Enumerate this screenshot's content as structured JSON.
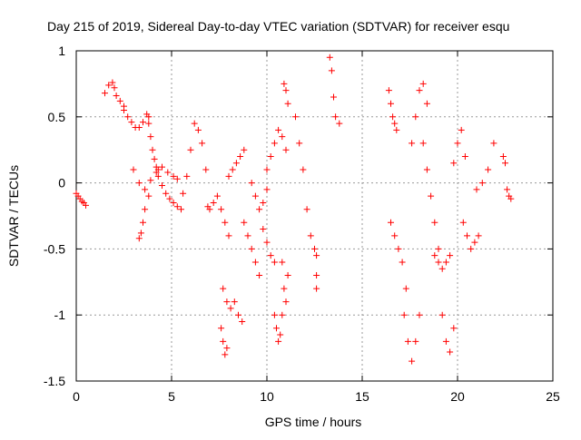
{
  "chart_data": {
    "type": "scatter",
    "title": "Day 215 of 2019, Sidereal Day-to-day VTEC variation (SDTVAR) for receiver esqu",
    "xlabel": "GPS time / hours",
    "ylabel": "SDTVAR / TECUs",
    "xlim": [
      0,
      25
    ],
    "ylim": [
      -1.5,
      1
    ],
    "x_ticks": [
      0,
      5,
      10,
      15,
      20,
      25
    ],
    "x_tick_labels": [
      "0",
      "5",
      "10",
      "15",
      "20",
      "25"
    ],
    "y_ticks": [
      1,
      0.5,
      0,
      -0.5,
      -1,
      -1.5
    ],
    "y_tick_labels": [
      "1",
      "0.5",
      "0",
      "-0.5",
      "-1",
      "-1.5"
    ],
    "grid": true,
    "marker": "plus",
    "series": [
      {
        "name": "SDTVAR",
        "color": "#ff0000",
        "tracks": [
          {
            "x": [
              0.0,
              0.1,
              0.2,
              0.3,
              0.4,
              0.5
            ],
            "y": [
              -0.08,
              -0.1,
              -0.12,
              -0.14,
              -0.15,
              -0.17
            ]
          },
          {
            "x": [
              1.5,
              1.7,
              1.9,
              2.0,
              2.1,
              2.3,
              2.5
            ],
            "y": [
              0.68,
              0.74,
              0.76,
              0.72,
              0.66,
              0.62,
              0.58
            ]
          },
          {
            "x": [
              2.5,
              2.7,
              2.9,
              3.1,
              3.3,
              3.5,
              3.7,
              3.8
            ],
            "y": [
              0.55,
              0.5,
              0.46,
              0.42,
              0.42,
              0.46,
              0.52,
              0.5
            ]
          },
          {
            "x": [
              3.8,
              3.9,
              4.0,
              4.1,
              4.2,
              4.3
            ],
            "y": [
              0.45,
              0.35,
              0.25,
              0.18,
              0.12,
              0.1
            ]
          },
          {
            "x": [
              3.0,
              3.3,
              3.6,
              3.9,
              4.2,
              4.5,
              4.8,
              5.1,
              5.3
            ],
            "y": [
              0.1,
              0.0,
              -0.05,
              0.02,
              0.08,
              0.12,
              0.08,
              0.05,
              0.03
            ]
          },
          {
            "x": [
              3.3,
              3.4,
              3.5,
              3.6,
              3.8
            ],
            "y": [
              -0.42,
              -0.38,
              -0.3,
              -0.2,
              -0.1
            ]
          },
          {
            "x": [
              4.3,
              4.5,
              4.7,
              4.9,
              5.1,
              5.3,
              5.5
            ],
            "y": [
              0.05,
              -0.02,
              -0.08,
              -0.12,
              -0.15,
              -0.18,
              -0.2
            ]
          },
          {
            "x": [
              5.6,
              5.8,
              6.0,
              6.2,
              6.4,
              6.6,
              6.8
            ],
            "y": [
              -0.08,
              0.05,
              0.25,
              0.45,
              0.4,
              0.3,
              0.1
            ]
          },
          {
            "x": [
              6.9,
              7.0,
              7.2,
              7.4,
              7.6,
              7.8,
              8.0
            ],
            "y": [
              -0.18,
              -0.2,
              -0.15,
              -0.1,
              -0.2,
              -0.3,
              -0.4
            ]
          },
          {
            "x": [
              7.6,
              7.7,
              7.8,
              7.9
            ],
            "y": [
              -1.1,
              -1.2,
              -1.3,
              -1.25
            ]
          },
          {
            "x": [
              7.7,
              7.9,
              8.1,
              8.3,
              8.5,
              8.7
            ],
            "y": [
              -0.8,
              -0.9,
              -0.95,
              -0.9,
              -1.0,
              -1.05
            ]
          },
          {
            "x": [
              8.0,
              8.2,
              8.4,
              8.6,
              8.8
            ],
            "y": [
              0.05,
              0.1,
              0.15,
              0.2,
              0.25
            ]
          },
          {
            "x": [
              8.8,
              9.0,
              9.2,
              9.4,
              9.6
            ],
            "y": [
              -0.3,
              -0.4,
              -0.5,
              -0.6,
              -0.7
            ]
          },
          {
            "x": [
              9.2,
              9.4,
              9.6,
              9.8,
              10.0
            ],
            "y": [
              0.0,
              -0.1,
              -0.2,
              -0.15,
              -0.05
            ]
          },
          {
            "x": [
              9.8,
              10.0,
              10.2,
              10.4
            ],
            "y": [
              -0.35,
              -0.45,
              -0.55,
              -0.6
            ]
          },
          {
            "x": [
              10.0,
              10.2,
              10.4,
              10.6,
              10.8,
              11.0
            ],
            "y": [
              0.1,
              0.2,
              0.3,
              0.4,
              0.35,
              0.25
            ]
          },
          {
            "x": [
              10.4,
              10.5,
              10.6,
              10.7,
              10.8
            ],
            "y": [
              -1.0,
              -1.1,
              -1.2,
              -1.15,
              -1.0
            ]
          },
          {
            "x": [
              10.8,
              10.9,
              11.0,
              11.1
            ],
            "y": [
              -0.6,
              -0.8,
              -0.9,
              -0.7
            ]
          },
          {
            "x": [
              10.9,
              11.0,
              11.1
            ],
            "y": [
              0.75,
              0.7,
              0.6
            ]
          },
          {
            "x": [
              11.5,
              11.7,
              11.9,
              12.1,
              12.3
            ],
            "y": [
              0.5,
              0.3,
              0.1,
              -0.2,
              -0.4
            ]
          },
          {
            "x": [
              12.5,
              12.6
            ],
            "y": [
              -0.5,
              -0.55
            ]
          },
          {
            "x": [
              12.6
            ],
            "y": [
              -0.7
            ]
          },
          {
            "x": [
              12.6
            ],
            "y": [
              -0.8
            ]
          },
          {
            "x": [
              13.3,
              13.4,
              13.5,
              13.6,
              13.8
            ],
            "y": [
              0.95,
              0.85,
              0.65,
              0.5,
              0.45
            ]
          },
          {
            "x": [
              16.4,
              16.5,
              16.6,
              16.7,
              16.8
            ],
            "y": [
              0.7,
              0.6,
              0.5,
              0.45,
              0.4
            ]
          },
          {
            "x": [
              16.5,
              16.7,
              16.9,
              17.1,
              17.3
            ],
            "y": [
              -0.3,
              -0.4,
              -0.5,
              -0.6,
              -0.8
            ]
          },
          {
            "x": [
              17.2,
              17.4,
              17.6,
              17.8,
              18.0
            ],
            "y": [
              -1.0,
              -1.2,
              -1.35,
              -1.2,
              -1.0
            ]
          },
          {
            "x": [
              17.6,
              17.8,
              18.0,
              18.2,
              18.4
            ],
            "y": [
              0.3,
              0.5,
              0.7,
              0.75,
              0.6
            ]
          },
          {
            "x": [
              18.2,
              18.4,
              18.6,
              18.8,
              19.0
            ],
            "y": [
              0.3,
              0.1,
              -0.1,
              -0.3,
              -0.5
            ]
          },
          {
            "x": [
              18.8,
              19.0,
              19.2,
              19.4,
              19.6
            ],
            "y": [
              -0.55,
              -0.6,
              -0.65,
              -0.6,
              -0.55
            ]
          },
          {
            "x": [
              19.2,
              19.4,
              19.6,
              19.8
            ],
            "y": [
              -1.0,
              -1.2,
              -1.28,
              -1.1
            ]
          },
          {
            "x": [
              19.8,
              20.0,
              20.2,
              20.4
            ],
            "y": [
              0.15,
              0.3,
              0.4,
              0.2
            ]
          },
          {
            "x": [
              20.3,
              20.5,
              20.7,
              20.9,
              21.1
            ],
            "y": [
              -0.3,
              -0.4,
              -0.5,
              -0.45,
              -0.4
            ]
          },
          {
            "x": [
              21.0,
              21.3,
              21.6,
              21.9
            ],
            "y": [
              -0.05,
              0.0,
              0.1,
              0.3
            ]
          },
          {
            "x": [
              22.4,
              22.5,
              22.6,
              22.7,
              22.8
            ],
            "y": [
              0.2,
              0.15,
              -0.05,
              -0.1,
              -0.12
            ]
          }
        ]
      }
    ]
  }
}
